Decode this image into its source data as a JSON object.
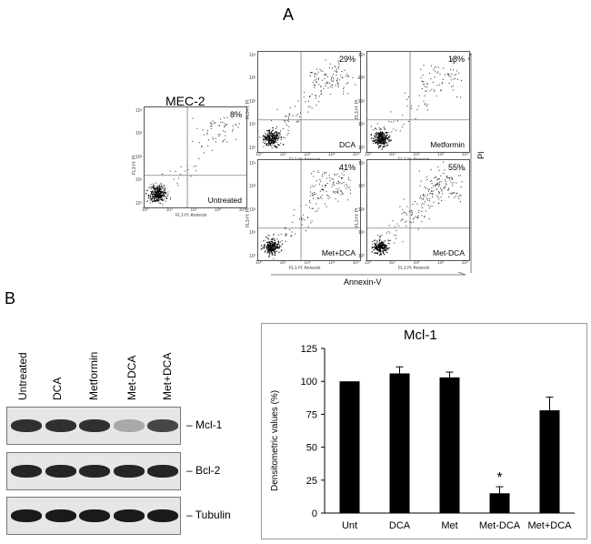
{
  "panel_a": {
    "letter": "A",
    "cell_line": "MEC-2",
    "plots": [
      {
        "percent": "8%",
        "condition": "Untreated",
        "density": 0.2
      },
      {
        "percent": "29%",
        "condition": "DCA",
        "density": 0.5
      },
      {
        "percent": "18%",
        "condition": "Metformin",
        "density": 0.35
      },
      {
        "percent": "41%",
        "condition": "Met+DCA",
        "density": 0.6
      },
      {
        "percent": "55%",
        "condition": "Met-DCA",
        "density": 0.8
      }
    ],
    "small_ylabel": "FL3-H: PI",
    "small_xlabel": "FL1-H: Annexin",
    "ticks": [
      "10⁰",
      "10¹",
      "10²",
      "10³",
      "10⁴"
    ],
    "axis_x_label": "Annexin-V",
    "axis_y_label": "PI"
  },
  "panel_b": {
    "letter": "B",
    "lanes": [
      "Untreated",
      "DCA",
      "Metformin",
      "Met-DCA",
      "Met+DCA"
    ],
    "blots": [
      {
        "label": "Mcl-1",
        "intensities": [
          0.85,
          0.85,
          0.85,
          0.3,
          0.75
        ]
      },
      {
        "label": "Bcl-2",
        "intensities": [
          0.9,
          0.9,
          0.9,
          0.9,
          0.9
        ]
      },
      {
        "label": "Tubulin",
        "intensities": [
          0.95,
          0.95,
          0.95,
          0.95,
          0.95
        ]
      }
    ]
  },
  "chart_data": {
    "type": "bar",
    "title": "Mcl-1",
    "ylabel": "Densitometric values  (%)",
    "xlabel": "",
    "categories": [
      "Unt",
      "DCA",
      "Met",
      "Met-DCA",
      "Met+DCA"
    ],
    "values": [
      100,
      106,
      103,
      15,
      78
    ],
    "errors": [
      0,
      5,
      4,
      5,
      10
    ],
    "ylim": [
      0,
      125
    ],
    "yticks": [
      0,
      25,
      50,
      75,
      100,
      125
    ],
    "annotations": [
      {
        "category": "Met-DCA",
        "text": "*"
      }
    ],
    "bar_color": "#000000"
  }
}
